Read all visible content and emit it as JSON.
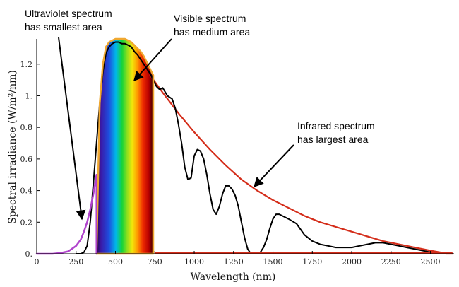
{
  "chart_data": {
    "type": "line",
    "title": "",
    "xlabel": "Wavelength (nm)",
    "ylabel": "Spectral irradiance (W/m²/nm)",
    "xlim": [
      0,
      2650
    ],
    "ylim": [
      0,
      1.36
    ],
    "grid": false,
    "x_ticks": [
      0,
      250,
      500,
      750,
      1000,
      1250,
      1500,
      1750,
      2000,
      2250,
      2500
    ],
    "y_ticks": [
      0,
      0.2,
      0.4,
      0.6,
      0.8,
      1,
      1.2
    ],
    "x_tick_labels": [
      "0",
      "250",
      "500",
      "750",
      "1000",
      "1250",
      "1500",
      "1750",
      "2000",
      "2250",
      "2500"
    ],
    "y_tick_labels": [
      "0.",
      "0.2",
      "0.4",
      "0.6",
      "0.8",
      "1.",
      "1.2"
    ],
    "series": [
      {
        "color": "#000000",
        "x": [
          250,
          280,
          300,
          320,
          340,
          360,
          380,
          400,
          420,
          440,
          460,
          480,
          500,
          520,
          540,
          560,
          580,
          600,
          620,
          640,
          660,
          680,
          700,
          720,
          740,
          760,
          780,
          800,
          830,
          860,
          880,
          900,
          920,
          940,
          960,
          980,
          1000,
          1020,
          1040,
          1060,
          1080,
          1100,
          1120,
          1140,
          1160,
          1180,
          1200,
          1220,
          1240,
          1260,
          1280,
          1300,
          1320,
          1340,
          1360,
          1380,
          1400,
          1420,
          1440,
          1460,
          1480,
          1500,
          1520,
          1540,
          1560,
          1580,
          1600,
          1650,
          1700,
          1750,
          1800,
          1850,
          1900,
          1950,
          2000,
          2050,
          2100,
          2150,
          2200,
          2250,
          2300,
          2350,
          2400,
          2450,
          2500,
          2550,
          2600,
          2640
        ],
        "y": [
          0,
          0,
          0.01,
          0.05,
          0.2,
          0.45,
          0.7,
          0.95,
          1.15,
          1.27,
          1.31,
          1.33,
          1.34,
          1.34,
          1.33,
          1.33,
          1.32,
          1.31,
          1.28,
          1.26,
          1.23,
          1.2,
          1.17,
          1.14,
          1.1,
          1.06,
          1.04,
          1.05,
          1.0,
          0.98,
          0.92,
          0.82,
          0.7,
          0.55,
          0.47,
          0.48,
          0.62,
          0.66,
          0.65,
          0.6,
          0.5,
          0.38,
          0.28,
          0.25,
          0.3,
          0.38,
          0.43,
          0.43,
          0.41,
          0.37,
          0.3,
          0.2,
          0.1,
          0.03,
          0.0,
          0.0,
          0.0,
          0.01,
          0.04,
          0.09,
          0.16,
          0.22,
          0.25,
          0.25,
          0.24,
          0.23,
          0.22,
          0.19,
          0.12,
          0.08,
          0.06,
          0.05,
          0.04,
          0.04,
          0.04,
          0.05,
          0.06,
          0.07,
          0.07,
          0.06,
          0.05,
          0.04,
          0.03,
          0.02,
          0.01,
          0.0,
          0.0,
          0.0
        ]
      },
      {
        "color": "#d42d1a",
        "x": [
          720,
          800,
          900,
          1000,
          1100,
          1200,
          1300,
          1400,
          1500,
          1600,
          1700,
          1800,
          1900,
          2000,
          2100,
          2200,
          2300,
          2400,
          2500,
          2560,
          2600,
          2640
        ],
        "y": [
          1.13,
          1.02,
          0.89,
          0.77,
          0.66,
          0.56,
          0.47,
          0.4,
          0.34,
          0.29,
          0.24,
          0.2,
          0.17,
          0.14,
          0.11,
          0.08,
          0.06,
          0.04,
          0.02,
          0.01,
          0.0,
          0.0
        ]
      },
      {
        "color": "#b044cc",
        "x": [
          0,
          100,
          150,
          200,
          250,
          280,
          300,
          320,
          340,
          360,
          370,
          380,
          380
        ],
        "y": [
          0,
          0,
          0.005,
          0.015,
          0.05,
          0.09,
          0.14,
          0.2,
          0.28,
          0.38,
          0.44,
          0.5,
          0
        ]
      },
      {
        "color": "#f0a830",
        "x": [
          380,
          400,
          420,
          440,
          460,
          480,
          500,
          520,
          540,
          560,
          580,
          600,
          620,
          640,
          660,
          680,
          700,
          720,
          740,
          740,
          380
        ],
        "y": [
          0,
          0.95,
          1.2,
          1.31,
          1.34,
          1.35,
          1.36,
          1.36,
          1.36,
          1.36,
          1.35,
          1.34,
          1.32,
          1.3,
          1.28,
          1.25,
          1.21,
          1.17,
          1.13,
          0,
          0
        ]
      }
    ],
    "annotations": [
      {
        "lines": [
          "Ultraviolet spectrum",
          "has smallest area"
        ]
      },
      {
        "lines": [
          "Visible spectrum",
          "has medium area"
        ]
      },
      {
        "lines": [
          "Infrared spectrum",
          "has largest area"
        ]
      }
    ]
  }
}
